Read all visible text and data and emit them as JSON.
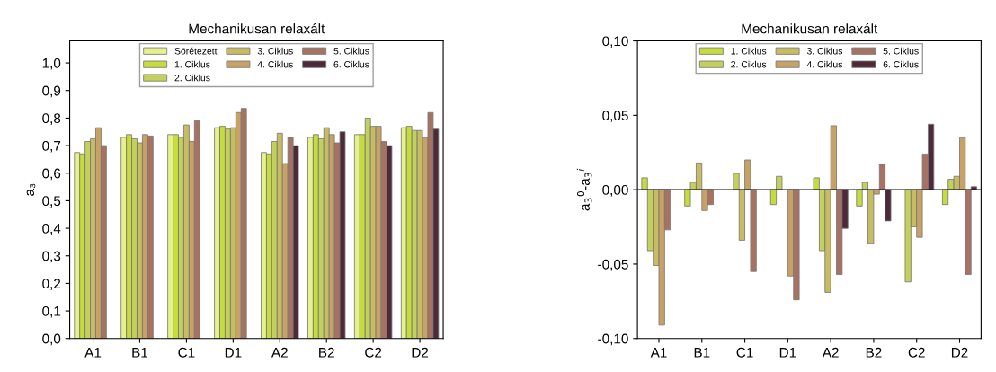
{
  "chart_data": [
    {
      "type": "bar",
      "title": "Mechanikusan relaxált",
      "ylabel": "a₃",
      "categories": [
        "A1",
        "B1",
        "C1",
        "D1",
        "A2",
        "B2",
        "C2",
        "D2"
      ],
      "ylim": [
        0,
        1.08
      ],
      "yticks": [
        {
          "value": 0,
          "label": "0,0"
        },
        {
          "value": 0.1,
          "label": "0,1"
        },
        {
          "value": 0.2,
          "label": "0,2"
        },
        {
          "value": 0.3,
          "label": "0,3"
        },
        {
          "value": 0.4,
          "label": "0,4"
        },
        {
          "value": 0.5,
          "label": "0,5"
        },
        {
          "value": 0.6,
          "label": "0,6"
        },
        {
          "value": 0.7,
          "label": "0,7"
        },
        {
          "value": 0.8,
          "label": "0,8"
        },
        {
          "value": 0.9,
          "label": "0,9"
        },
        {
          "value": 1.0,
          "label": "1,0"
        }
      ],
      "legend": "top",
      "series": [
        {
          "name": "Sörétezett",
          "color": "#e6f08c",
          "values": [
            0.675,
            0.73,
            0.74,
            0.765,
            0.675,
            0.73,
            0.74,
            0.765
          ]
        },
        {
          "name": "1. Ciklus",
          "color": "#c6dc3c",
          "values": [
            0.67,
            0.74,
            0.74,
            0.77,
            0.67,
            0.74,
            0.74,
            0.77
          ]
        },
        {
          "name": "2. Ciklus",
          "color": "#c4d05c",
          "values": [
            0.715,
            0.725,
            0.73,
            0.76,
            0.715,
            0.725,
            0.8,
            0.755
          ]
        },
        {
          "name": "3. Ciklus",
          "color": "#c8bc62",
          "values": [
            0.725,
            0.71,
            0.775,
            0.765,
            0.745,
            0.765,
            0.77,
            0.755
          ]
        },
        {
          "name": "4. Ciklus",
          "color": "#c8a264",
          "values": [
            0.765,
            0.74,
            0.715,
            0.82,
            0.635,
            0.74,
            0.77,
            0.73
          ]
        },
        {
          "name": "5. Ciklus",
          "color": "#a87262",
          "values": [
            0.7,
            0.735,
            0.79,
            0.835,
            0.73,
            0.71,
            0.715,
            0.82
          ]
        },
        {
          "name": "6. Ciklus",
          "color": "#4c2a3a",
          "values": [
            null,
            null,
            null,
            null,
            0.7,
            0.75,
            0.7,
            0.76
          ]
        }
      ]
    },
    {
      "type": "bar",
      "title": "Mechanikusan relaxált",
      "ylabel": "a$_{3}$$^{0}$-a$_{3}$$^{i}$",
      "categories": [
        "A1",
        "B1",
        "C1",
        "D1",
        "A2",
        "B2",
        "C2",
        "D2"
      ],
      "ylim": [
        -0.1,
        0.1
      ],
      "yticks": [
        {
          "value": -0.1,
          "label": "-0,10"
        },
        {
          "value": -0.05,
          "label": "-0,05"
        },
        {
          "value": 0,
          "label": "0,00"
        },
        {
          "value": 0.05,
          "label": "0,05"
        },
        {
          "value": 0.1,
          "label": "0,10"
        }
      ],
      "ref_lines": [
        {
          "axis": "y",
          "value": 0,
          "color": "#000000"
        }
      ],
      "legend": "top",
      "series": [
        {
          "name": "1. Ciklus",
          "color": "#c6dc3c",
          "values": [
            0.008,
            -0.011,
            null,
            -0.01,
            0.008,
            -0.011,
            null,
            -0.01
          ]
        },
        {
          "name": "2. Ciklus",
          "color": "#c4d05c",
          "values": [
            -0.041,
            0.005,
            0.011,
            0.009,
            -0.041,
            0.005,
            -0.062,
            0.007
          ]
        },
        {
          "name": "3. Ciklus",
          "color": "#c8bc62",
          "values": [
            -0.051,
            0.018,
            -0.034,
            null,
            -0.069,
            -0.036,
            -0.025,
            0.009
          ]
        },
        {
          "name": "4. Ciklus",
          "color": "#c8a264",
          "values": [
            -0.091,
            -0.014,
            0.02,
            -0.058,
            0.043,
            -0.003,
            -0.032,
            0.035
          ]
        },
        {
          "name": "5. Ciklus",
          "color": "#a87262",
          "values": [
            -0.027,
            -0.01,
            -0.055,
            -0.074,
            -0.057,
            0.017,
            0.024,
            -0.057
          ]
        },
        {
          "name": "6. Ciklus",
          "color": "#4c2a3a",
          "values": [
            null,
            null,
            null,
            null,
            -0.026,
            -0.021,
            0.044,
            0.002
          ]
        }
      ]
    }
  ]
}
